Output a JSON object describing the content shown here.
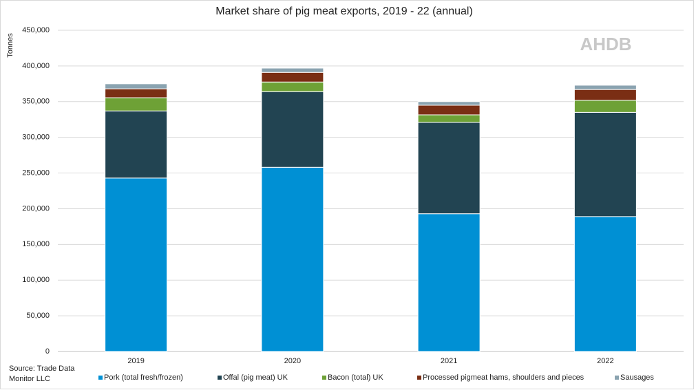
{
  "chart_data": {
    "type": "stacked-bar",
    "title": "Market share of pig meat exports, 2019 - 22 (annual)",
    "y_label": "Tonnes",
    "watermark": "AHDB",
    "source": [
      "Source: Trade Data",
      "Monitor LLC"
    ],
    "categories": [
      "2019",
      "2020",
      "2021",
      "2022"
    ],
    "series": [
      {
        "name": "Pork (total fresh/frozen)",
        "color": "#0090d4",
        "values": [
          243000,
          258000,
          193000,
          189000
        ]
      },
      {
        "name": "Offal (pig meat) UK",
        "color": "#224452",
        "values": [
          94000,
          106000,
          128000,
          146000
        ]
      },
      {
        "name": "Bacon (total) UK",
        "color": "#6ea136",
        "values": [
          18500,
          13500,
          10500,
          17000
        ]
      },
      {
        "name": "Processed pigmeat hams, shoulders and pieces",
        "color": "#7a2e14",
        "values": [
          12500,
          13500,
          13500,
          15000
        ]
      },
      {
        "name": "Sausages",
        "color": "#8aa3b0",
        "values": [
          7000,
          6000,
          5000,
          6000
        ]
      }
    ],
    "ylim": [
      0,
      450000
    ],
    "yticks": [
      0,
      {
        "value": 50000,
        "label": "50,000"
      },
      {
        "value": 100000,
        "label": "100,000"
      },
      {
        "value": 150000,
        "label": "150,000"
      },
      {
        "value": 200000,
        "label": "200,000"
      },
      {
        "value": 250000,
        "label": "250,000"
      },
      {
        "value": 300000,
        "label": "300,000"
      },
      {
        "value": 350000,
        "label": "350,000"
      },
      {
        "value": 400000,
        "label": "400,000"
      },
      {
        "value": 450000,
        "label": "450,000"
      }
    ],
    "grid": true
  }
}
